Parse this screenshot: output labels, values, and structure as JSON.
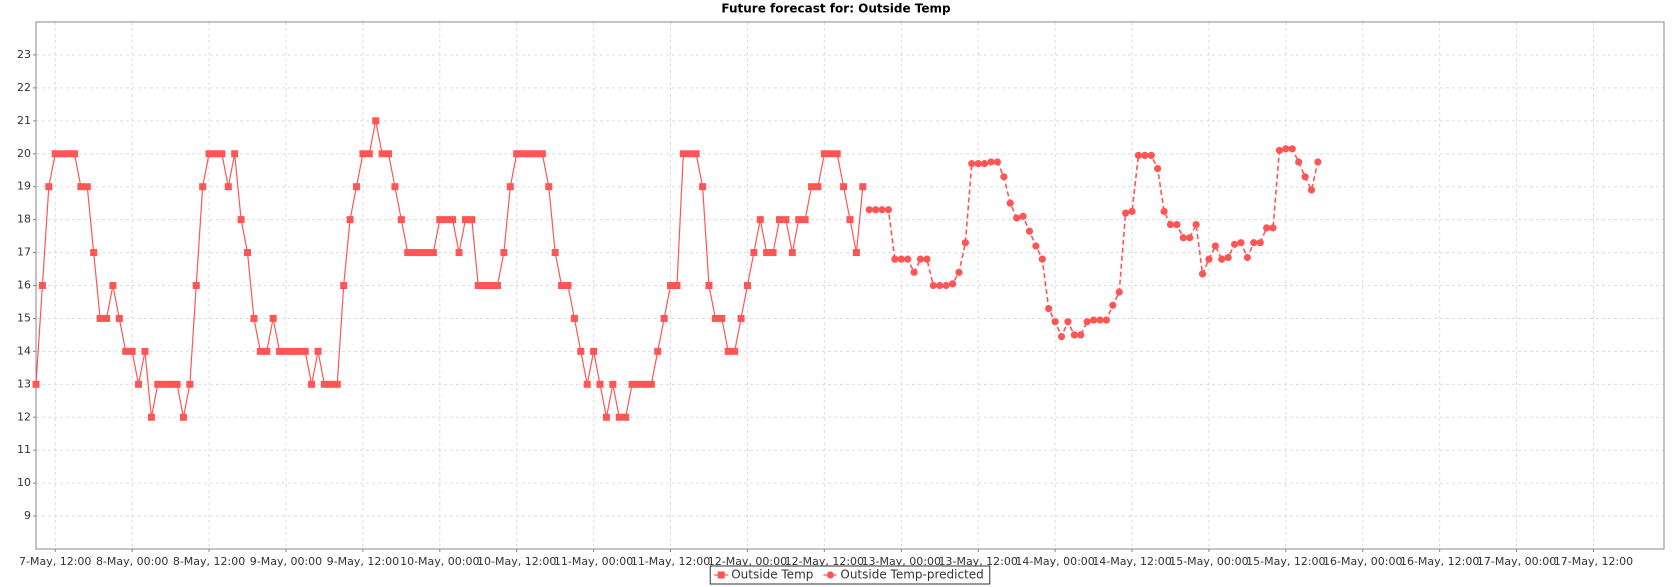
{
  "chart_data": {
    "type": "line",
    "title": "Future forecast for: Outside Temp",
    "legend": "bottom",
    "grid": true,
    "xlim": [
      "7-May, 09:00",
      "17-May, 23:00"
    ],
    "xticks": [
      "7-May, 12:00",
      "8-May, 00:00",
      "8-May, 12:00",
      "9-May, 00:00",
      "9-May, 12:00",
      "10-May, 00:00",
      "10-May, 12:00",
      "11-May, 00:00",
      "11-May, 12:00",
      "12-May, 00:00",
      "12-May, 12:00",
      "13-May, 00:00",
      "13-May, 12:00",
      "14-May, 00:00",
      "14-May, 12:00",
      "15-May, 00:00",
      "15-May, 12:00",
      "16-May, 00:00",
      "16-May, 12:00",
      "17-May, 00:00",
      "17-May, 12:00"
    ],
    "ylim": [
      8,
      24
    ],
    "yticks": [
      9,
      10,
      11,
      12,
      13,
      14,
      15,
      16,
      17,
      18,
      19,
      20,
      21,
      22,
      23
    ],
    "series": [
      {
        "name": "Outside Temp",
        "color": "#ff5555",
        "marker": "square",
        "dashed": false,
        "x": [
          "7-May, 09:00",
          "7-May, 10:00",
          "7-May, 11:00",
          "7-May, 12:00",
          "7-May, 13:00",
          "7-May, 14:00",
          "7-May, 15:00",
          "7-May, 16:00",
          "7-May, 17:00",
          "7-May, 18:00",
          "7-May, 19:00",
          "7-May, 20:00",
          "7-May, 21:00",
          "7-May, 22:00",
          "7-May, 23:00",
          "8-May, 00:00",
          "8-May, 01:00",
          "8-May, 02:00",
          "8-May, 03:00",
          "8-May, 04:00",
          "8-May, 05:00",
          "8-May, 06:00",
          "8-May, 07:00",
          "8-May, 08:00",
          "8-May, 09:00",
          "8-May, 10:00",
          "8-May, 11:00",
          "8-May, 12:00",
          "8-May, 13:00",
          "8-May, 14:00",
          "8-May, 15:00",
          "8-May, 16:00",
          "8-May, 17:00",
          "8-May, 18:00",
          "8-May, 19:00",
          "8-May, 20:00",
          "8-May, 21:00",
          "8-May, 22:00",
          "8-May, 23:00",
          "9-May, 00:00",
          "9-May, 01:00",
          "9-May, 02:00",
          "9-May, 03:00",
          "9-May, 04:00",
          "9-May, 05:00",
          "9-May, 06:00",
          "9-May, 07:00",
          "9-May, 08:00",
          "9-May, 09:00",
          "9-May, 10:00",
          "9-May, 11:00",
          "9-May, 12:00",
          "9-May, 13:00",
          "9-May, 14:00",
          "9-May, 15:00",
          "9-May, 16:00",
          "9-May, 17:00",
          "9-May, 18:00",
          "9-May, 19:00",
          "9-May, 20:00",
          "9-May, 21:00",
          "9-May, 22:00",
          "9-May, 23:00",
          "10-May, 00:00",
          "10-May, 01:00",
          "10-May, 02:00",
          "10-May, 03:00",
          "10-May, 04:00",
          "10-May, 05:00",
          "10-May, 06:00",
          "10-May, 07:00",
          "10-May, 08:00",
          "10-May, 09:00",
          "10-May, 10:00",
          "10-May, 11:00",
          "10-May, 12:00",
          "10-May, 13:00",
          "10-May, 14:00",
          "10-May, 15:00",
          "10-May, 16:00",
          "10-May, 17:00",
          "10-May, 18:00",
          "10-May, 19:00",
          "10-May, 20:00",
          "10-May, 21:00",
          "10-May, 22:00",
          "10-May, 23:00",
          "11-May, 00:00",
          "11-May, 01:00",
          "11-May, 02:00",
          "11-May, 03:00",
          "11-May, 04:00",
          "11-May, 05:00",
          "11-May, 06:00",
          "11-May, 07:00",
          "11-May, 08:00",
          "11-May, 09:00",
          "11-May, 10:00",
          "11-May, 11:00",
          "11-May, 12:00",
          "11-May, 13:00",
          "11-May, 14:00",
          "11-May, 15:00",
          "11-May, 16:00",
          "11-May, 17:00",
          "11-May, 18:00",
          "11-May, 19:00",
          "11-May, 20:00",
          "11-May, 21:00",
          "11-May, 22:00",
          "11-May, 23:00",
          "12-May, 00:00",
          "12-May, 01:00",
          "12-May, 02:00",
          "12-May, 03:00",
          "12-May, 04:00",
          "12-May, 05:00",
          "12-May, 06:00",
          "12-May, 07:00",
          "12-May, 08:00",
          "12-May, 09:00",
          "12-May, 10:00",
          "12-May, 11:00",
          "12-May, 12:00",
          "12-May, 13:00",
          "12-May, 14:00",
          "12-May, 15:00",
          "12-May, 16:00",
          "12-May, 17:00",
          "12-May, 18:00"
        ],
        "values": [
          13,
          16,
          19,
          20,
          20,
          20,
          20,
          19,
          19,
          17,
          15,
          15,
          16,
          15,
          14,
          14,
          13,
          14,
          12,
          13,
          13,
          13,
          13,
          12,
          13,
          16,
          19,
          20,
          20,
          20,
          19,
          20,
          18,
          17,
          15,
          14,
          14,
          15,
          14,
          14,
          14,
          14,
          14,
          13,
          14,
          13,
          13,
          13,
          16,
          18,
          19,
          20,
          20,
          21,
          20,
          20,
          19,
          18,
          17,
          17,
          17,
          17,
          17,
          18,
          18,
          18,
          17,
          18,
          18,
          16,
          16,
          16,
          16,
          17,
          19,
          20,
          20,
          20,
          20,
          20,
          19,
          17,
          16,
          16,
          15,
          14,
          13,
          14,
          13,
          12,
          13,
          12,
          12,
          13,
          13,
          13,
          13,
          14,
          15,
          16,
          16,
          20,
          20,
          20,
          19,
          16,
          15,
          15,
          14,
          14,
          15,
          16,
          17,
          18,
          17,
          17,
          18,
          18,
          17,
          18,
          18,
          19,
          19,
          20,
          20,
          20,
          19,
          18,
          17,
          19
        ]
      },
      {
        "name": "Outside Temp-predicted",
        "color": "#ff5555",
        "marker": "circle",
        "dashed": true,
        "x": [
          "12-May, 19:00",
          "12-May, 20:00",
          "12-May, 21:00",
          "12-May, 22:00",
          "12-May, 23:00",
          "13-May, 00:00",
          "13-May, 01:00",
          "13-May, 02:00",
          "13-May, 03:00",
          "13-May, 04:00",
          "13-May, 05:00",
          "13-May, 06:00",
          "13-May, 07:00",
          "13-May, 08:00",
          "13-May, 09:00",
          "13-May, 10:00",
          "13-May, 11:00",
          "13-May, 12:00",
          "13-May, 13:00",
          "13-May, 14:00",
          "13-May, 15:00",
          "13-May, 16:00",
          "13-May, 17:00",
          "13-May, 18:00",
          "13-May, 19:00",
          "13-May, 20:00",
          "13-May, 21:00",
          "13-May, 22:00",
          "13-May, 23:00",
          "14-May, 00:00",
          "14-May, 01:00",
          "14-May, 02:00",
          "14-May, 03:00",
          "14-May, 04:00",
          "14-May, 05:00",
          "14-May, 06:00",
          "14-May, 07:00",
          "14-May, 08:00",
          "14-May, 09:00",
          "14-May, 10:00",
          "14-May, 11:00",
          "14-May, 12:00",
          "14-May, 13:00",
          "14-May, 14:00",
          "14-May, 15:00",
          "14-May, 16:00",
          "14-May, 17:00",
          "14-May, 18:00",
          "14-May, 19:00",
          "14-May, 20:00",
          "14-May, 21:00",
          "14-May, 22:00",
          "14-May, 23:00",
          "15-May, 00:00",
          "15-May, 01:00",
          "15-May, 02:00",
          "15-May, 03:00",
          "15-May, 04:00",
          "15-May, 05:00",
          "15-May, 06:00",
          "15-May, 07:00",
          "15-May, 08:00",
          "15-May, 09:00",
          "15-May, 10:00",
          "15-May, 11:00",
          "15-May, 12:00",
          "15-May, 13:00",
          "15-May, 14:00",
          "15-May, 15:00",
          "15-May, 16:00",
          "15-May, 17:00"
        ],
        "values": [
          18.3,
          18.3,
          18.3,
          18.3,
          16.8,
          16.8,
          16.8,
          16.4,
          16.8,
          16.8,
          16.0,
          16.0,
          16.0,
          16.05,
          16.4,
          17.3,
          19.7,
          19.7,
          19.7,
          19.75,
          19.75,
          19.3,
          18.5,
          18.05,
          18.1,
          17.65,
          17.2,
          16.8,
          15.3,
          14.9,
          14.45,
          14.9,
          14.5,
          14.5,
          14.9,
          14.95,
          14.95,
          14.95,
          15.4,
          15.8,
          18.2,
          18.25,
          19.95,
          19.95,
          19.95,
          19.55,
          18.25,
          17.85,
          17.85,
          17.45,
          17.45,
          17.85,
          16.35,
          16.8,
          17.2,
          16.8,
          16.85,
          17.25,
          17.3,
          16.85,
          17.3,
          17.3,
          17.75,
          17.75,
          20.1,
          20.15,
          20.15,
          19.75,
          19.3,
          18.9,
          19.75
        ]
      }
    ]
  }
}
